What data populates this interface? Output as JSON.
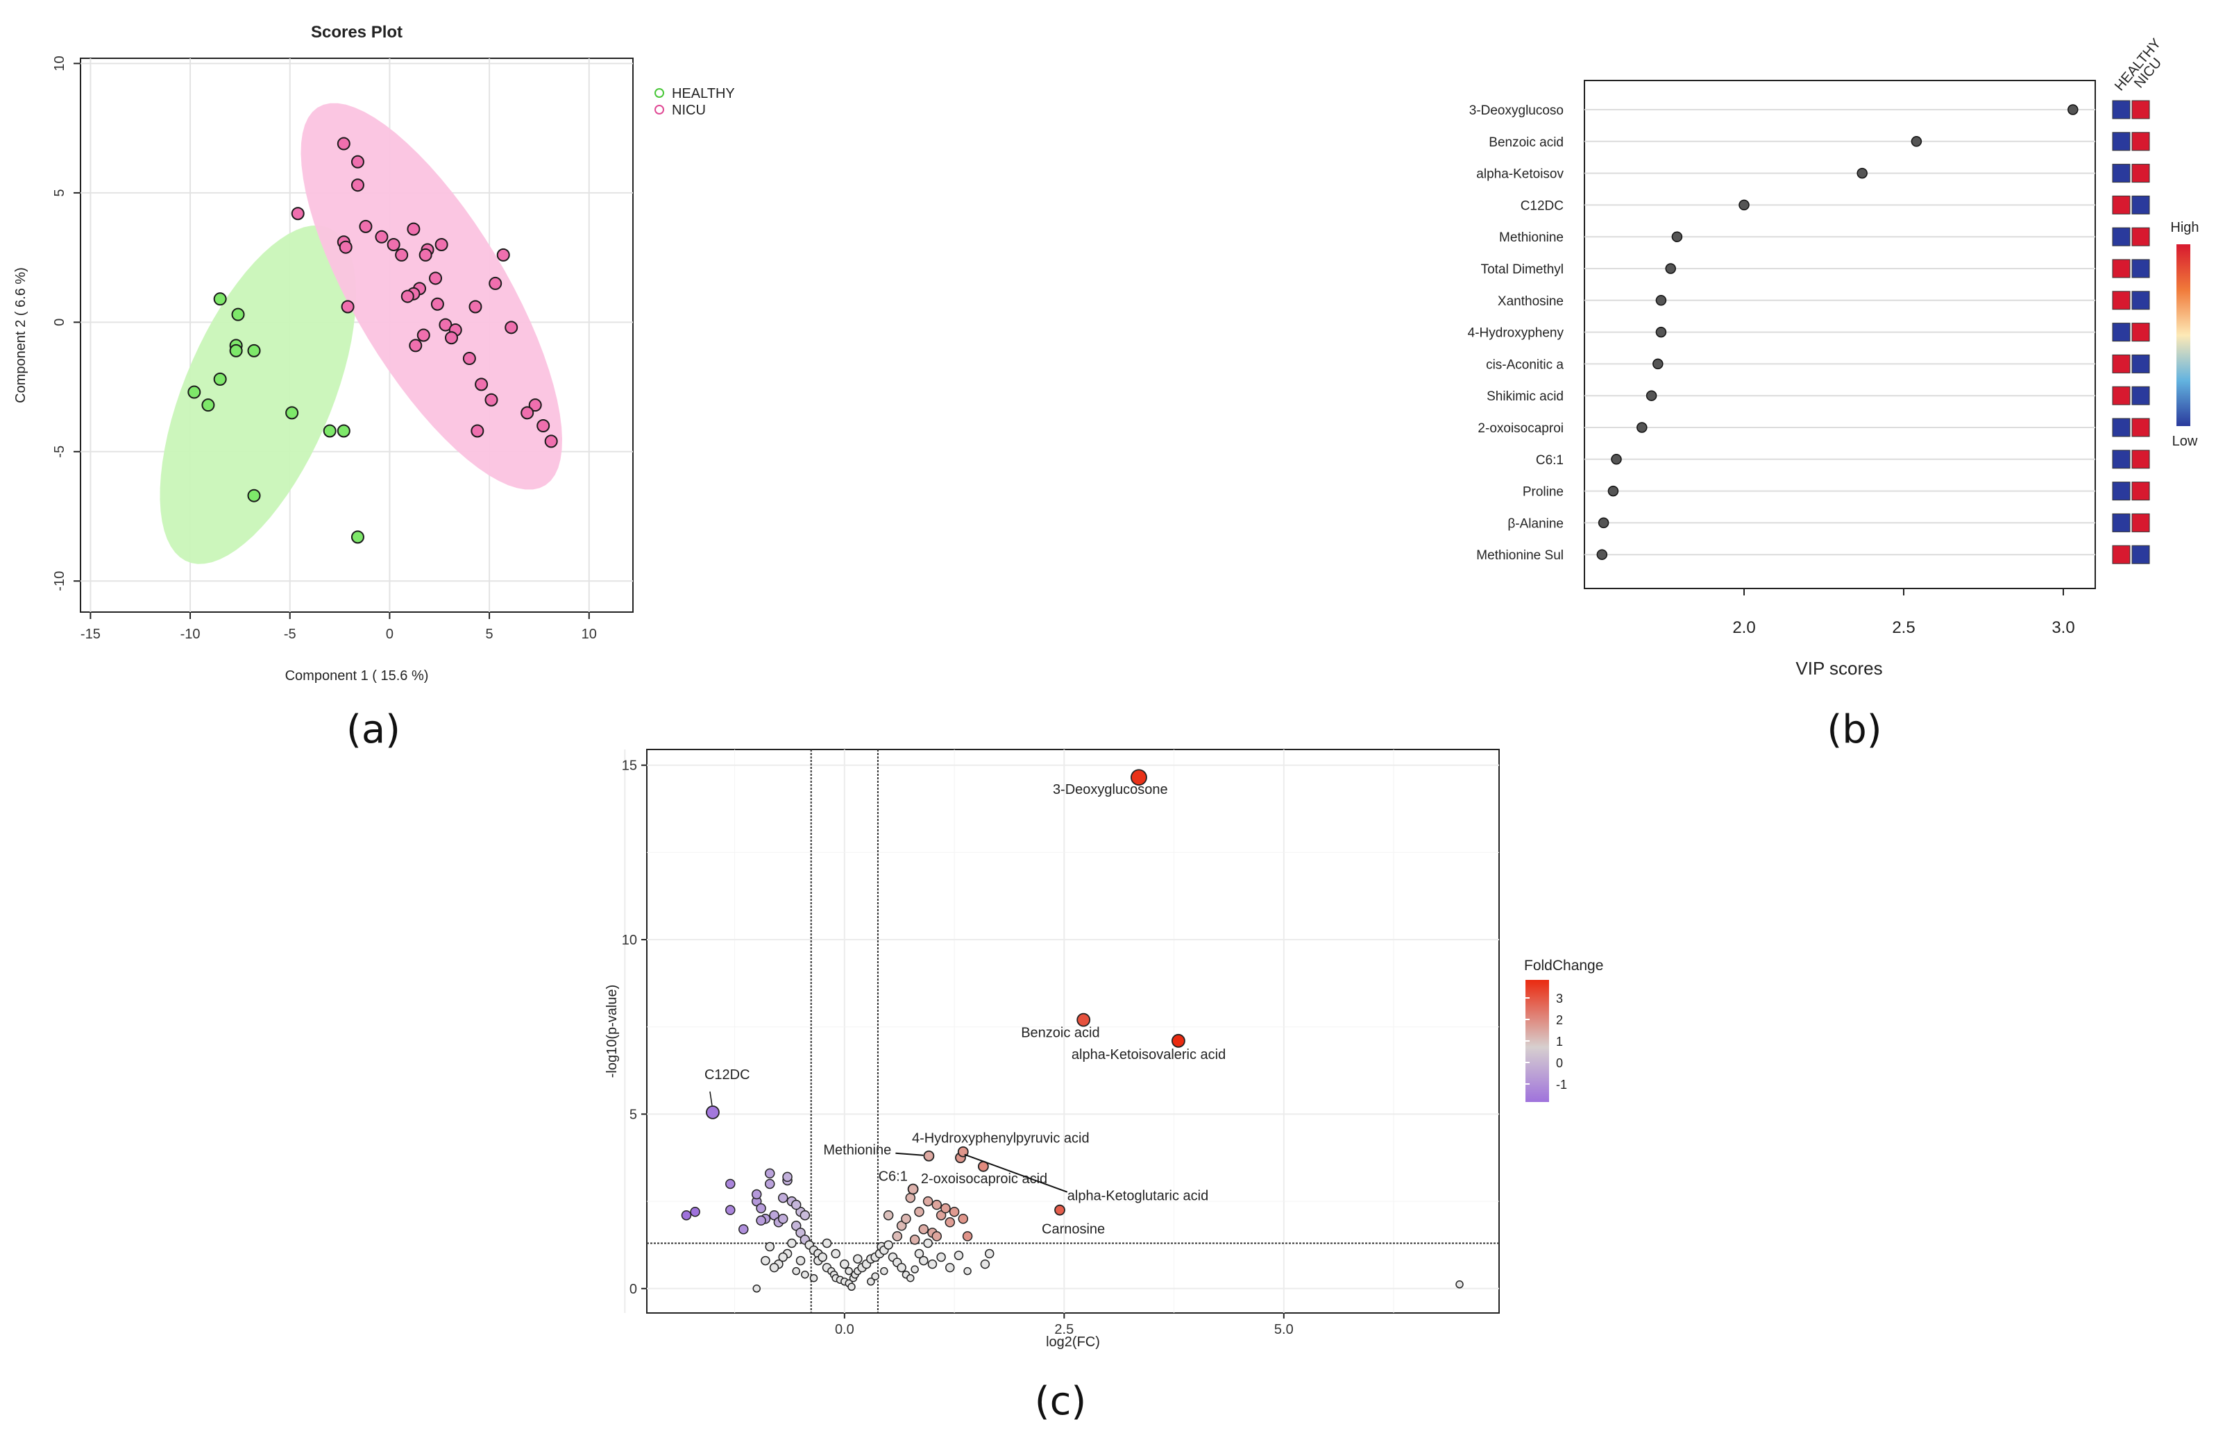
{
  "panel_labels": [
    "(a)",
    "(b)",
    "(c)"
  ],
  "chart_data": [
    {
      "panel": "a",
      "type": "scatter",
      "title": "Scores Plot",
      "xlabel": "Component 1 ( 15.6 %)",
      "ylabel": "Component 2 ( 6.6 %)",
      "xlim": [
        -15.5,
        12.2
      ],
      "ylim": [
        -11.2,
        10.2
      ],
      "xticks": [
        -15,
        -10,
        -5,
        0,
        5,
        10
      ],
      "yticks": [
        10,
        5,
        0,
        -5,
        -10
      ],
      "tick_labels_x": [
        "-15",
        "-10",
        "-5",
        "0",
        "5",
        "10"
      ],
      "tick_labels_y": [
        "10",
        "5",
        "0",
        "-5",
        "-10"
      ],
      "grid": true,
      "legend": [
        "HEALTHY",
        "NICU"
      ],
      "legend_position": "top-right outside",
      "colors": {
        "HEALTHY": "#7ee86a",
        "NICU": "#ef6fae",
        "HEALTHY_ellipse": "#c9f5b8",
        "NICU_ellipse": "#fbc3e0"
      },
      "ellipses": [
        {
          "name": "HEALTHY",
          "cx": -6.6,
          "cy": -2.8,
          "a": 7.4,
          "b": 3.5,
          "angle_deg": 58
        },
        {
          "name": "NICU",
          "cx": 2.1,
          "cy": 1.0,
          "a": 9.3,
          "b": 3.5,
          "angle_deg": -50
        }
      ],
      "series": [
        {
          "name": "HEALTHY",
          "points": [
            [
              -8.5,
              0.9
            ],
            [
              -7.6,
              0.3
            ],
            [
              -7.7,
              -0.9
            ],
            [
              -7.7,
              -1.1
            ],
            [
              -6.8,
              -1.1
            ],
            [
              -9.8,
              -2.7
            ],
            [
              -8.5,
              -2.2
            ],
            [
              -9.1,
              -3.2
            ],
            [
              -4.9,
              -3.5
            ],
            [
              -3.0,
              -4.2
            ],
            [
              -2.3,
              -4.2
            ],
            [
              -6.8,
              -6.7
            ],
            [
              -1.6,
              -8.3
            ]
          ]
        },
        {
          "name": "NICU",
          "points": [
            [
              -2.3,
              6.9
            ],
            [
              -1.6,
              6.2
            ],
            [
              -1.6,
              5.3
            ],
            [
              -4.6,
              4.2
            ],
            [
              -1.2,
              3.7
            ],
            [
              1.2,
              3.6
            ],
            [
              -0.4,
              3.3
            ],
            [
              -2.3,
              3.1
            ],
            [
              -2.2,
              2.9
            ],
            [
              0.2,
              3.0
            ],
            [
              2.6,
              3.0
            ],
            [
              1.9,
              2.8
            ],
            [
              1.8,
              2.6
            ],
            [
              0.6,
              2.6
            ],
            [
              5.7,
              2.6
            ],
            [
              2.3,
              1.7
            ],
            [
              1.5,
              1.3
            ],
            [
              1.2,
              1.1
            ],
            [
              0.9,
              1.0
            ],
            [
              5.3,
              1.5
            ],
            [
              2.4,
              0.7
            ],
            [
              -2.1,
              0.6
            ],
            [
              4.3,
              0.6
            ],
            [
              6.1,
              -0.2
            ],
            [
              2.8,
              -0.1
            ],
            [
              3.3,
              -0.3
            ],
            [
              1.7,
              -0.5
            ],
            [
              3.1,
              -0.6
            ],
            [
              1.3,
              -0.9
            ],
            [
              4.0,
              -1.4
            ],
            [
              4.6,
              -2.4
            ],
            [
              5.1,
              -3.0
            ],
            [
              7.3,
              -3.2
            ],
            [
              6.9,
              -3.5
            ],
            [
              7.7,
              -4.0
            ],
            [
              4.4,
              -4.2
            ],
            [
              8.1,
              -4.6
            ]
          ]
        }
      ]
    },
    {
      "panel": "b",
      "type": "dot",
      "xlabel": "VIP scores",
      "xlim": [
        1.5,
        3.1
      ],
      "xticks": [
        2.0,
        2.5,
        3.0
      ],
      "tick_labels_x": [
        "2.0",
        "2.5",
        "3.0"
      ],
      "features": [
        "3-Deoxyglucoso",
        "Benzoic acid",
        "alpha-Ketoisov",
        "C12DC",
        "Methionine",
        "Total Dimethyl",
        "Xanthosine",
        "4-Hydroxypheny",
        "cis-Aconitic a",
        "Shikimic acid",
        "2-oxoisocaproi",
        "C6:1",
        "Proline",
        "β-Alanine",
        "Methionine Sul"
      ],
      "values": [
        3.03,
        2.54,
        2.37,
        2.0,
        1.79,
        1.77,
        1.74,
        1.74,
        1.73,
        1.71,
        1.68,
        1.6,
        1.59,
        1.56,
        1.555
      ],
      "heatmap_columns": [
        "HEALTHY",
        "NICU"
      ],
      "heatmap_levels": [
        [
          "low",
          "high"
        ],
        [
          "low",
          "high"
        ],
        [
          "low",
          "high"
        ],
        [
          "high",
          "low"
        ],
        [
          "low",
          "high"
        ],
        [
          "high",
          "low"
        ],
        [
          "high",
          "low"
        ],
        [
          "low",
          "high"
        ],
        [
          "high",
          "low"
        ],
        [
          "high",
          "low"
        ],
        [
          "low",
          "high"
        ],
        [
          "low",
          "high"
        ],
        [
          "low",
          "high"
        ],
        [
          "low",
          "high"
        ],
        [
          "high",
          "low"
        ]
      ],
      "colorbar": {
        "high_label": "High",
        "low_label": "Low"
      },
      "colors": {
        "high": "#d7192f",
        "low": "#2a3a9c",
        "dot": "#555555"
      }
    },
    {
      "panel": "c",
      "type": "scatter",
      "subtype": "volcano",
      "xlabel": "log2(FC)",
      "ylabel": "-log10(p-value)",
      "xlim": [
        -2.25,
        7.45
      ],
      "ylim": [
        -0.7,
        15.45
      ],
      "xticks": [
        0.0,
        2.5,
        5.0
      ],
      "tick_labels_x": [
        "0.0",
        "2.5",
        "5.0"
      ],
      "yticks": [
        0,
        5,
        10,
        15
      ],
      "tick_labels_y": [
        "0",
        "5",
        "10",
        "15"
      ],
      "vlines": [
        -0.38,
        0.38
      ],
      "hline": 1.3,
      "legend_title": "FoldChange",
      "legend_ticks": [
        "3",
        "2",
        "1",
        "0",
        "-1"
      ],
      "legend_values": [
        3,
        2,
        1,
        0,
        -1
      ],
      "colors": {
        "high": "#ea2a10",
        "mid": "#d9d9d9",
        "low": "#9f72dc",
        "gray": "#e6e6e6"
      },
      "labeled_points": [
        {
          "label": "3-Deoxyglucosone",
          "x": 3.35,
          "y": 14.65,
          "size": "large"
        },
        {
          "label": "Benzoic acid",
          "x": 2.72,
          "y": 7.7,
          "size": "medium"
        },
        {
          "label": "alpha-Ketoisovaleric acid",
          "x": 3.8,
          "y": 7.1,
          "size": "medium"
        },
        {
          "label": "C12DC",
          "x": -1.5,
          "y": 5.05,
          "size": "medium"
        },
        {
          "label": "Methionine",
          "x": 0.96,
          "y": 3.8,
          "size": "small"
        },
        {
          "label": "4-Hydroxyphenylpyruvic acid",
          "x": 1.32,
          "y": 3.75,
          "size": "small"
        },
        {
          "label": "C6:1",
          "x": 0.78,
          "y": 2.85,
          "size": "small"
        },
        {
          "label": "2-oxoisocaproic acid",
          "x": 1.58,
          "y": 3.5,
          "size": "small"
        },
        {
          "label": "alpha-Ketoglutaric acid",
          "x": 1.35,
          "y": 3.92,
          "size": "small"
        },
        {
          "label": "Carnosine",
          "x": 2.45,
          "y": 2.25,
          "size": "small"
        }
      ],
      "points": [
        [
          -1.8,
          2.1
        ],
        [
          -1.7,
          2.2
        ],
        [
          -1.3,
          3.0
        ],
        [
          -1.3,
          2.25
        ],
        [
          -1.15,
          1.7
        ],
        [
          -1.0,
          2.5
        ],
        [
          -0.95,
          2.3
        ],
        [
          -0.9,
          2.0
        ],
        [
          -0.85,
          3.3
        ],
        [
          -0.85,
          3.0
        ],
        [
          -0.8,
          2.1
        ],
        [
          -0.75,
          1.9
        ],
        [
          -0.7,
          2.6
        ],
        [
          -0.65,
          3.1
        ],
        [
          -0.6,
          2.5
        ],
        [
          -0.55,
          1.8
        ],
        [
          -0.5,
          2.2
        ],
        [
          -0.45,
          2.1
        ],
        [
          -0.95,
          1.95
        ],
        [
          -0.7,
          2.0
        ],
        [
          -1.0,
          2.7
        ],
        [
          -0.65,
          3.2
        ],
        [
          -0.55,
          2.4
        ],
        [
          -0.5,
          1.6
        ],
        [
          -0.45,
          1.4
        ],
        [
          -0.4,
          1.25
        ],
        [
          -0.35,
          1.1
        ],
        [
          -0.3,
          1.0
        ],
        [
          -0.3,
          0.8
        ],
        [
          -0.25,
          0.9
        ],
        [
          -0.2,
          0.6
        ],
        [
          -0.15,
          0.5
        ],
        [
          -0.12,
          0.4
        ],
        [
          -0.1,
          0.3
        ],
        [
          -0.05,
          0.25
        ],
        [
          0.0,
          0.2
        ],
        [
          0.05,
          0.15
        ],
        [
          0.08,
          0.05
        ],
        [
          0.1,
          0.3
        ],
        [
          0.12,
          0.4
        ],
        [
          0.15,
          0.5
        ],
        [
          0.2,
          0.6
        ],
        [
          0.25,
          0.7
        ],
        [
          0.3,
          0.85
        ],
        [
          0.35,
          0.9
        ],
        [
          0.4,
          1.0
        ],
        [
          0.42,
          1.2
        ],
        [
          0.45,
          1.1
        ],
        [
          0.5,
          1.25
        ],
        [
          -0.6,
          1.3
        ],
        [
          -0.65,
          1.0
        ],
        [
          -0.7,
          0.9
        ],
        [
          -0.75,
          0.7
        ],
        [
          -0.8,
          0.6
        ],
        [
          -0.85,
          1.2
        ],
        [
          -0.9,
          0.8
        ],
        [
          -0.55,
          0.5
        ],
        [
          -0.5,
          0.8
        ],
        [
          -0.45,
          0.4
        ],
        [
          -0.35,
          0.3
        ],
        [
          0.3,
          0.2
        ],
        [
          0.35,
          0.35
        ],
        [
          0.45,
          0.5
        ],
        [
          0.55,
          0.9
        ],
        [
          0.6,
          0.75
        ],
        [
          0.65,
          0.6
        ],
        [
          0.7,
          0.4
        ],
        [
          0.75,
          0.3
        ],
        [
          0.8,
          0.55
        ],
        [
          0.85,
          1.0
        ],
        [
          0.9,
          0.8
        ],
        [
          1.0,
          0.7
        ],
        [
          1.1,
          0.9
        ],
        [
          1.2,
          0.6
        ],
        [
          1.3,
          0.95
        ],
        [
          1.4,
          0.5
        ],
        [
          1.6,
          0.7
        ],
        [
          1.65,
          1.0
        ],
        [
          -1.0,
          0.0
        ],
        [
          7.0,
          0.12
        ],
        [
          -0.2,
          1.3
        ],
        [
          -0.1,
          1.0
        ],
        [
          0.0,
          0.7
        ],
        [
          0.05,
          0.5
        ],
        [
          0.15,
          0.85
        ],
        [
          0.5,
          2.1
        ],
        [
          0.65,
          1.8
        ],
        [
          0.7,
          2.0
        ],
        [
          0.75,
          2.6
        ],
        [
          0.85,
          2.2
        ],
        [
          0.9,
          1.7
        ],
        [
          0.95,
          2.5
        ],
        [
          1.0,
          1.6
        ],
        [
          1.05,
          2.4
        ],
        [
          1.1,
          2.1
        ],
        [
          1.15,
          2.3
        ],
        [
          1.2,
          1.9
        ],
        [
          1.25,
          2.2
        ],
        [
          1.35,
          2.0
        ],
        [
          1.4,
          1.5
        ],
        [
          0.8,
          1.4
        ],
        [
          0.95,
          1.3
        ],
        [
          0.6,
          1.5
        ],
        [
          1.05,
          1.5
        ]
      ]
    }
  ]
}
